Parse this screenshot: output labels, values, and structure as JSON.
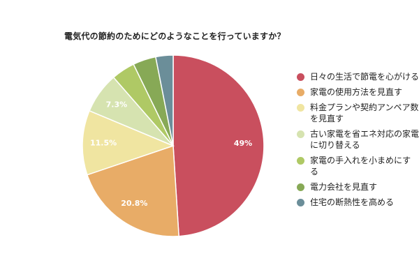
{
  "chart_data": {
    "type": "pie",
    "title": "電気代の節約のためにどのようなことを行っていますか？",
    "categories": [
      "日々の生活で節電を心がける",
      "家電の使用方法を見直す",
      "料金プランや契約アンペア数を見直す",
      "古い家電を省エネ対応の家電に切り替える",
      "家電の手入れを小まめにする",
      "電力会社を見直す",
      "住宅の断熱性を高める"
    ],
    "values": [
      49,
      20.8,
      11.5,
      7.3,
      4.2,
      4.1,
      3.1
    ],
    "data_labels": [
      "49%",
      "20.8%",
      "11.5%",
      "7.3%",
      "",
      "",
      ""
    ],
    "colors": [
      "#c94f5e",
      "#e8ac67",
      "#f0e5a1",
      "#d6e3b0",
      "#afc965",
      "#87a956",
      "#6b8e99"
    ],
    "legend_position": "right",
    "start_angle": "top",
    "direction": "clockwise"
  }
}
